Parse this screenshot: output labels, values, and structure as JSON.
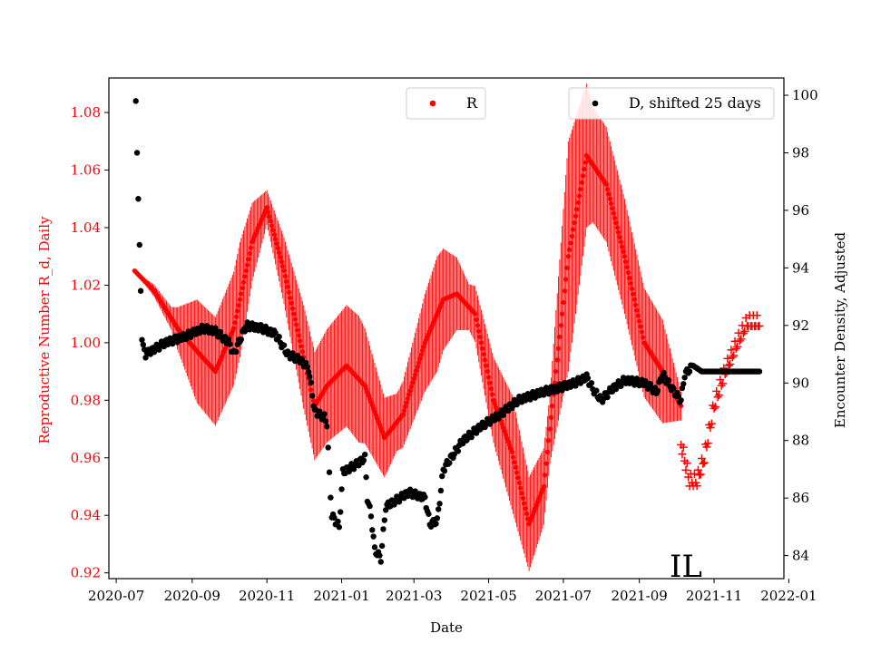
{
  "chart_data": {
    "type": "scatter",
    "state_label": "IL",
    "xlabel": "Date",
    "ylabel_left": "Reproductive Number R_d, Daily",
    "ylabel_right": "Encounter Density, Adjusted",
    "x_range": [
      "2020-06-25",
      "2021-12-28"
    ],
    "ylim_left": [
      0.918,
      1.092
    ],
    "ylim_right": [
      83.2,
      100.6
    ],
    "x_ticks": [
      {
        "date": "2020-07-01",
        "label": "2020-07"
      },
      {
        "date": "2020-09-01",
        "label": "2020-09"
      },
      {
        "date": "2020-11-01",
        "label": "2020-11"
      },
      {
        "date": "2021-01-01",
        "label": "2021-01"
      },
      {
        "date": "2021-03-01",
        "label": "2021-03"
      },
      {
        "date": "2021-05-01",
        "label": "2021-05"
      },
      {
        "date": "2021-07-01",
        "label": "2021-07"
      },
      {
        "date": "2021-09-01",
        "label": "2021-09"
      },
      {
        "date": "2021-11-01",
        "label": "2021-11"
      },
      {
        "date": "2022-01-01",
        "label": "2022-01"
      }
    ],
    "y_ticks_left": [
      {
        "value": 0.92,
        "label": "0.92"
      },
      {
        "value": 0.94,
        "label": "0.94"
      },
      {
        "value": 0.96,
        "label": "0.96"
      },
      {
        "value": 0.98,
        "label": "0.98"
      },
      {
        "value": 1.0,
        "label": "1.00"
      },
      {
        "value": 1.02,
        "label": "1.02"
      },
      {
        "value": 1.04,
        "label": "1.04"
      },
      {
        "value": 1.06,
        "label": "1.06"
      },
      {
        "value": 1.08,
        "label": "1.08"
      }
    ],
    "y_ticks_right": [
      {
        "value": 84,
        "label": "84"
      },
      {
        "value": 86,
        "label": "86"
      },
      {
        "value": 88,
        "label": "88"
      },
      {
        "value": 90,
        "label": "90"
      },
      {
        "value": 92,
        "label": "92"
      },
      {
        "value": 94,
        "label": "94"
      },
      {
        "value": 96,
        "label": "96"
      },
      {
        "value": 98,
        "label": "98"
      },
      {
        "value": 100,
        "label": "100"
      }
    ],
    "legend": {
      "r_label": "R",
      "d_label": "D, shifted 25 days",
      "r_placement": "top-center",
      "d_placement": "top-right"
    },
    "series": [
      {
        "name": "R",
        "axis": "left",
        "color": "#ff0000",
        "marker": "circle",
        "date_range": [
          "2020-07-16",
          "2021-10-05"
        ],
        "center_anchors": [
          [
            "2020-07-16",
            1.025
          ],
          [
            "2020-08-01",
            1.018
          ],
          [
            "2020-08-20",
            1.005
          ],
          [
            "2020-09-05",
            0.997
          ],
          [
            "2020-09-20",
            0.99
          ],
          [
            "2020-10-05",
            1.005
          ],
          [
            "2020-10-20",
            1.035
          ],
          [
            "2020-11-01",
            1.047
          ],
          [
            "2020-11-15",
            1.025
          ],
          [
            "2020-12-01",
            0.995
          ],
          [
            "2020-12-10",
            0.978
          ],
          [
            "2020-12-20",
            0.985
          ],
          [
            "2021-01-05",
            0.992
          ],
          [
            "2021-01-20",
            0.985
          ],
          [
            "2021-02-05",
            0.967
          ],
          [
            "2021-02-20",
            0.975
          ],
          [
            "2021-03-10",
            1.0
          ],
          [
            "2021-03-25",
            1.015
          ],
          [
            "2021-04-05",
            1.017
          ],
          [
            "2021-04-20",
            1.01
          ],
          [
            "2021-05-05",
            0.98
          ],
          [
            "2021-05-20",
            0.962
          ],
          [
            "2021-06-03",
            0.937
          ],
          [
            "2021-06-15",
            0.95
          ],
          [
            "2021-06-25",
            0.99
          ],
          [
            "2021-07-05",
            1.03
          ],
          [
            "2021-07-20",
            1.065
          ],
          [
            "2021-08-05",
            1.055
          ],
          [
            "2021-08-20",
            1.03
          ],
          [
            "2021-09-05",
            1.0
          ],
          [
            "2021-09-20",
            0.99
          ],
          [
            "2021-10-05",
            0.978
          ]
        ],
        "oscillation_amplitude_anchors": [
          [
            "2020-07-16",
            0.0
          ],
          [
            "2020-08-15",
            0.004
          ],
          [
            "2020-09-05",
            0.018
          ],
          [
            "2020-10-10",
            0.02
          ],
          [
            "2020-11-01",
            0.006
          ],
          [
            "2020-12-01",
            0.018
          ],
          [
            "2021-01-15",
            0.022
          ],
          [
            "2021-02-15",
            0.01
          ],
          [
            "2021-03-20",
            0.02
          ],
          [
            "2021-04-15",
            0.008
          ],
          [
            "2021-05-20",
            0.02
          ],
          [
            "2021-06-20",
            0.012
          ],
          [
            "2021-07-05",
            0.04
          ],
          [
            "2021-07-25",
            0.02
          ],
          [
            "2021-08-20",
            0.02
          ],
          [
            "2021-09-20",
            0.018
          ],
          [
            "2021-10-05",
            0.005
          ]
        ]
      },
      {
        "name": "R forecast",
        "axis": "left",
        "color": "#ff0000",
        "marker": "plus",
        "anchors": [
          [
            "2021-10-05",
            0.965
          ],
          [
            "2021-10-12",
            0.952
          ],
          [
            "2021-10-18",
            0.952
          ],
          [
            "2021-10-24",
            0.96
          ],
          [
            "2021-11-01",
            0.978
          ],
          [
            "2021-11-10",
            0.99
          ],
          [
            "2021-11-20",
            1.0
          ],
          [
            "2021-11-28",
            1.007
          ],
          [
            "2021-12-08",
            1.007
          ]
        ]
      },
      {
        "name": "D, shifted 25 days",
        "axis": "right",
        "color": "#000000",
        "marker": "circle",
        "anchors": [
          [
            "2020-07-17",
            99.8
          ],
          [
            "2020-07-18",
            98.0
          ],
          [
            "2020-07-19",
            96.4
          ],
          [
            "2020-07-20",
            94.8
          ],
          [
            "2020-07-21",
            93.2
          ],
          [
            "2020-07-22",
            91.5
          ],
          [
            "2020-07-25",
            91.0
          ],
          [
            "2020-08-10",
            91.4
          ],
          [
            "2020-08-25",
            91.6
          ],
          [
            "2020-09-10",
            91.9
          ],
          [
            "2020-09-20",
            91.8
          ],
          [
            "2020-10-01",
            91.4
          ],
          [
            "2020-10-05",
            91.0
          ],
          [
            "2020-10-15",
            92.0
          ],
          [
            "2020-10-28",
            91.9
          ],
          [
            "2020-11-08",
            91.7
          ],
          [
            "2020-11-18",
            91.0
          ],
          [
            "2020-11-28",
            90.8
          ],
          [
            "2020-12-05",
            90.5
          ],
          [
            "2020-12-10",
            89.0
          ],
          [
            "2020-12-18",
            88.8
          ],
          [
            "2020-12-20",
            88.6
          ],
          [
            "2020-12-22",
            86.8
          ],
          [
            "2020-12-24",
            85.4
          ],
          [
            "2020-12-30",
            85.0
          ],
          [
            "2021-01-02",
            86.9
          ],
          [
            "2021-01-14",
            87.2
          ],
          [
            "2021-01-20",
            87.4
          ],
          [
            "2021-01-22",
            86.0
          ],
          [
            "2021-01-25",
            85.4
          ],
          [
            "2021-01-28",
            84.2
          ],
          [
            "2021-02-02",
            83.9
          ],
          [
            "2021-02-06",
            85.7
          ],
          [
            "2021-02-25",
            86.2
          ],
          [
            "2021-03-10",
            86.0
          ],
          [
            "2021-03-14",
            85.1
          ],
          [
            "2021-03-20",
            85.2
          ],
          [
            "2021-03-25",
            87.0
          ],
          [
            "2021-04-10",
            88.0
          ],
          [
            "2021-04-25",
            88.5
          ],
          [
            "2021-05-10",
            88.9
          ],
          [
            "2021-05-25",
            89.4
          ],
          [
            "2021-06-15",
            89.7
          ],
          [
            "2021-06-25",
            89.8
          ],
          [
            "2021-07-10",
            90.0
          ],
          [
            "2021-07-20",
            90.2
          ],
          [
            "2021-07-25",
            89.8
          ],
          [
            "2021-08-01",
            89.4
          ],
          [
            "2021-08-10",
            89.8
          ],
          [
            "2021-08-20",
            90.1
          ],
          [
            "2021-09-05",
            90.0
          ],
          [
            "2021-09-15",
            89.7
          ],
          [
            "2021-09-20",
            90.3
          ],
          [
            "2021-10-01",
            89.6
          ],
          [
            "2021-10-05",
            89.4
          ],
          [
            "2021-10-08",
            90.3
          ],
          [
            "2021-10-15",
            90.6
          ],
          [
            "2021-10-22",
            90.4
          ],
          [
            "2021-12-08",
            90.4
          ]
        ]
      }
    ]
  }
}
